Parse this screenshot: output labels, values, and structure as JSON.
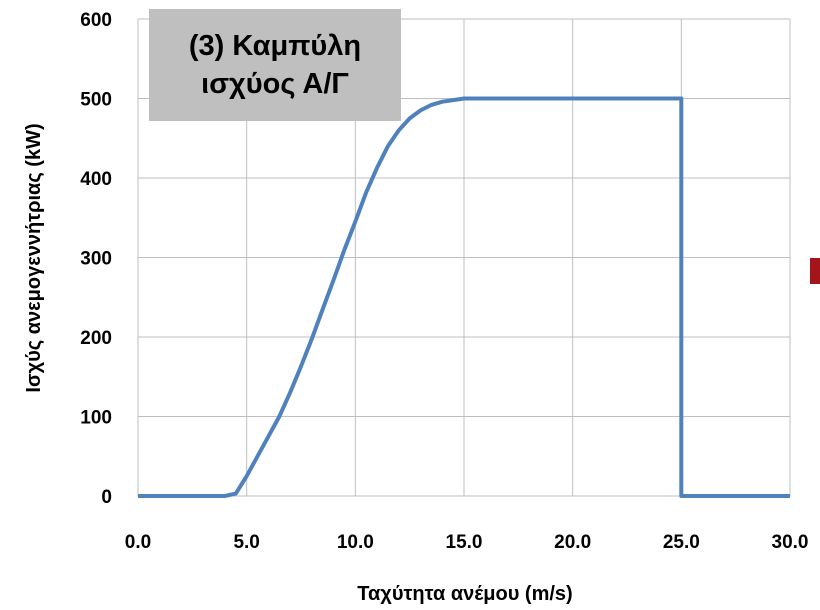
{
  "chart_data": {
    "type": "line",
    "title_lines": [
      "(3) Καμπύλη",
      "ισχύος Α/Γ"
    ],
    "xlabel": "Ταχύτητα ανέμου (m/s)",
    "ylabel": "Ισχύς ανεμογεννήτριας (kW)",
    "xlim": [
      0,
      30
    ],
    "ylim": [
      0,
      600
    ],
    "x_ticks": [
      0,
      5,
      10,
      15,
      20,
      25,
      30
    ],
    "x_tick_labels": [
      "0.0",
      "5.0",
      "10.0",
      "15.0",
      "20.0",
      "25.0",
      "30.0"
    ],
    "y_ticks": [
      0,
      100,
      200,
      300,
      400,
      500,
      600
    ],
    "y_tick_labels": [
      "0",
      "100",
      "200",
      "300",
      "400",
      "500",
      "600"
    ],
    "grid": true,
    "line_color": "#4f81bd",
    "series": [
      {
        "x": [
          0,
          4,
          4.5,
          5,
          5.5,
          6,
          6.5,
          7,
          7.5,
          8,
          8.5,
          9,
          9.5,
          10,
          10.5,
          11,
          11.5,
          12,
          12.5,
          13,
          13.5,
          14,
          14.5,
          15,
          16,
          17,
          18,
          19,
          20,
          21,
          22,
          23,
          24,
          25,
          25,
          26,
          27,
          28,
          29,
          30
        ],
        "y": [
          0,
          0,
          3,
          25,
          50,
          75,
          100,
          130,
          163,
          198,
          235,
          272,
          310,
          345,
          382,
          413,
          440,
          460,
          475,
          485,
          492,
          496,
          498,
          500,
          500,
          500,
          500,
          500,
          500,
          500,
          500,
          500,
          500,
          500,
          0,
          0,
          0,
          0,
          0,
          0
        ]
      }
    ]
  },
  "colors": {
    "title_box_bg": "#bfbfbf",
    "grid": "#bfbfbf",
    "edge_mark": "#a3151b"
  }
}
